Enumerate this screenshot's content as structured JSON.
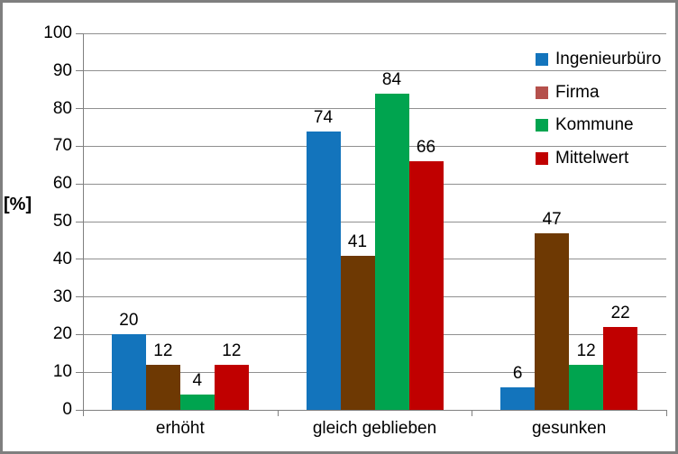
{
  "chart_data": {
    "type": "bar",
    "title": "",
    "ylabel": "[%]",
    "categories": [
      "erhöht",
      "gleich geblieben",
      "gesunken"
    ],
    "series": [
      {
        "name": "Ingenieurbüro",
        "values": [
          20,
          74,
          6
        ],
        "bar_color": "#1374BC",
        "legend_color": "#1374BC"
      },
      {
        "name": "Firma",
        "values": [
          12,
          41,
          47
        ],
        "bar_color": "#6E3903",
        "legend_color": "#B5504C"
      },
      {
        "name": "Kommune",
        "values": [
          4,
          84,
          12
        ],
        "bar_color": "#00A44F",
        "legend_color": "#00A44F"
      },
      {
        "name": "Mittelwert",
        "values": [
          12,
          66,
          22
        ],
        "bar_color": "#C00000",
        "legend_color": "#C00000"
      }
    ],
    "ylim": [
      0,
      100
    ],
    "yticks": [
      0,
      10,
      20,
      30,
      40,
      50,
      60,
      70,
      80,
      90,
      100
    ],
    "grid": true,
    "legend_position": "top-right",
    "bar_value_labels_shown": true
  },
  "colors": {
    "gridline": "#909090",
    "axis": "#808080",
    "frame_border": "#7F7F7F",
    "text": "#000000",
    "background": "#FFFFFF"
  }
}
